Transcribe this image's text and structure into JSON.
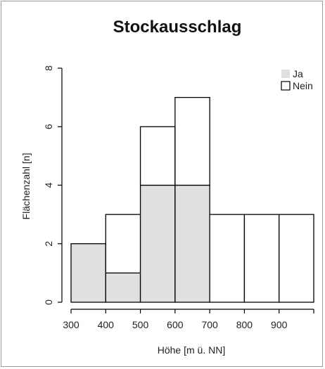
{
  "chart_data": {
    "type": "bar",
    "title": "Stockausschlag",
    "xlabel": "Höhe [m ü. NN]",
    "ylabel": "Flächenzahl [n]",
    "ylim": [
      0,
      8
    ],
    "y_ticks": [
      "0",
      "2",
      "4",
      "6",
      "8"
    ],
    "x_ticks": [
      "300",
      "400",
      "500",
      "600",
      "700",
      "800",
      "900"
    ],
    "x_tick_values": [
      300,
      400,
      500,
      600,
      700,
      800,
      900
    ],
    "xlim": [
      300,
      1000
    ],
    "bins": [
      {
        "start": 300,
        "end": 400
      },
      {
        "start": 400,
        "end": 500
      },
      {
        "start": 500,
        "end": 600
      },
      {
        "start": 600,
        "end": 700
      },
      {
        "start": 700,
        "end": 800
      },
      {
        "start": 800,
        "end": 900
      },
      {
        "start": 900,
        "end": 1000
      }
    ],
    "series": [
      {
        "name": "Ja",
        "values": [
          2,
          1,
          4,
          4,
          0,
          0,
          0
        ]
      },
      {
        "name": "Nein",
        "values": [
          0,
          2,
          2,
          3,
          3,
          3,
          3
        ]
      }
    ],
    "stacked": true,
    "grid": false,
    "legend_position": "top-right",
    "colors": {
      "Ja": "#e0e0e0",
      "Nein": "#ffffff",
      "outline": "#000000"
    }
  }
}
